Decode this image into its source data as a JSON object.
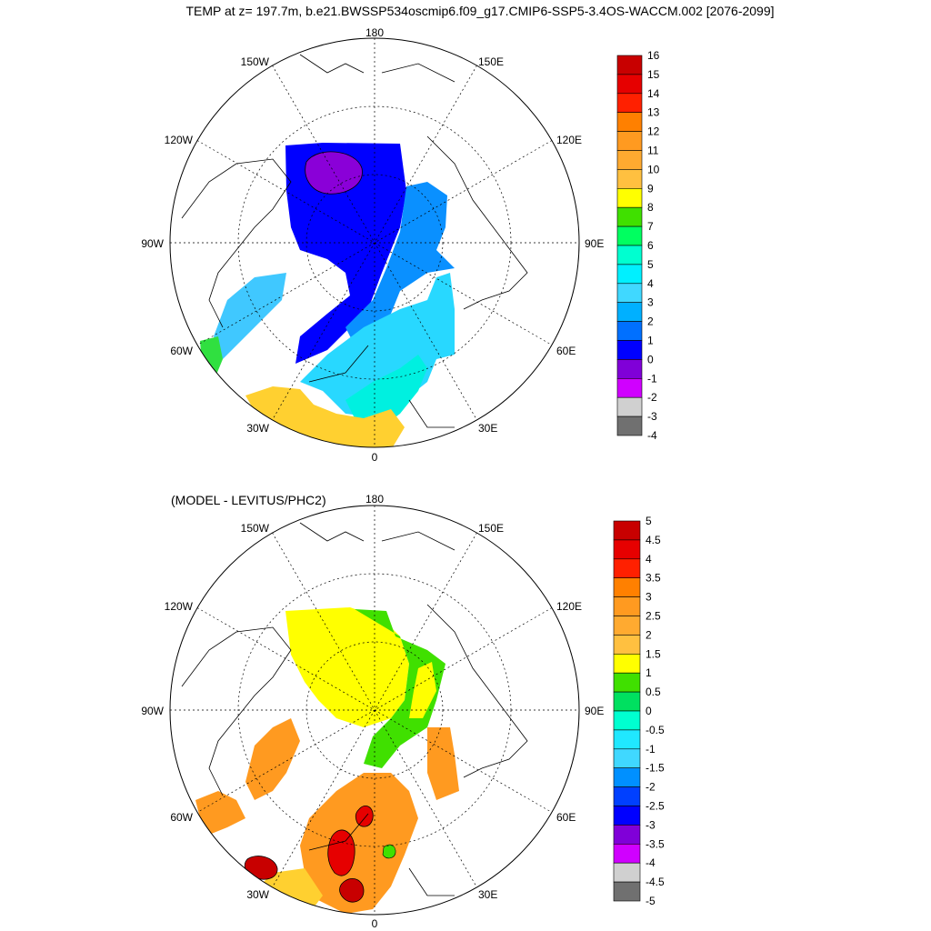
{
  "figure": {
    "title": "TEMP at z= 197.7m, b.e21.BWSSP534oscmip6.f09_g17.CMIP6-SSP5-3.4OS-WACCM.002 [2076-2099]",
    "subtitle": "(MODEL - LEVITUS/PHC2)"
  },
  "lon_labels": [
    "180",
    "150E",
    "120E",
    "90E",
    "60E",
    "30E",
    "0",
    "30W",
    "60W",
    "90W",
    "120W",
    "150W"
  ],
  "top_colorbar": {
    "labels": [
      "16",
      "15",
      "14",
      "13",
      "12",
      "11",
      "10",
      "9",
      "8",
      "7",
      "6",
      "5",
      "4",
      "3",
      "2",
      "1",
      "0",
      "-1",
      "-2",
      "-3",
      "-4"
    ],
    "colors": [
      "#c80000",
      "#e60000",
      "#ff2000",
      "#ff8000",
      "#ff9a20",
      "#ffaa30",
      "#ffc040",
      "#ffff00",
      "#40e000",
      "#00ff60",
      "#00ffd0",
      "#00f0ff",
      "#40d8ff",
      "#00b0ff",
      "#0070ff",
      "#0000ff",
      "#8000d8",
      "#d000ff",
      "#d0d0d0",
      "#707070"
    ]
  },
  "bottom_colorbar": {
    "labels": [
      "5",
      "4.5",
      "4",
      "3.5",
      "3",
      "2.5",
      "2",
      "1.5",
      "1",
      "0.5",
      "0",
      "-0.5",
      "-1",
      "-1.5",
      "-2",
      "-2.5",
      "-3",
      "-3.5",
      "-4",
      "-4.5",
      "-5"
    ],
    "colors": [
      "#c80000",
      "#e60000",
      "#ff2000",
      "#ff8000",
      "#ff9a20",
      "#ffaa30",
      "#ffc040",
      "#ffff00",
      "#40e000",
      "#00e060",
      "#00ffd0",
      "#20e8ff",
      "#40d8ff",
      "#0090ff",
      "#0040ff",
      "#0000ff",
      "#8000d8",
      "#d000ff",
      "#d0d0d0",
      "#707070"
    ]
  },
  "colors": {
    "land_line": "#000000",
    "grid": "#000000"
  }
}
